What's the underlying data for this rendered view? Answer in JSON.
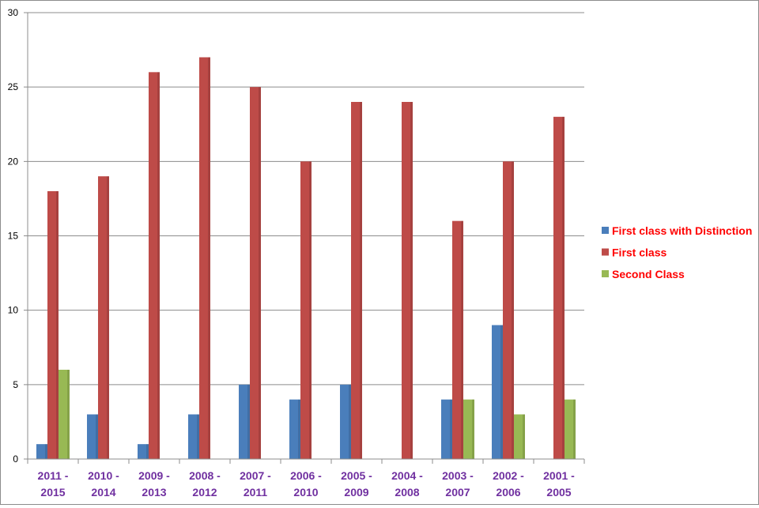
{
  "chart_data": {
    "type": "bar",
    "title": "",
    "xlabel": "",
    "ylabel": "",
    "ylim": [
      0,
      30
    ],
    "yticks": [
      "0",
      "5",
      "10",
      "15",
      "20",
      "25",
      "30"
    ],
    "grid": true,
    "legend_position": "right",
    "categories": [
      [
        "2011 -",
        "2015"
      ],
      [
        "2010 -",
        "2014"
      ],
      [
        "2009 -",
        "2013"
      ],
      [
        "2008 -",
        "2012"
      ],
      [
        "2007 -",
        "2011"
      ],
      [
        "2006 -",
        "2010"
      ],
      [
        "2005 -",
        "2009"
      ],
      [
        "2004 -",
        "2008"
      ],
      [
        "2003 -",
        "2007"
      ],
      [
        "2002 -",
        "2006"
      ],
      [
        "2001 -",
        "2005"
      ]
    ],
    "series": [
      {
        "name": "First class with Distinction",
        "color": "#4a7ebb",
        "values": [
          1,
          3,
          1,
          3,
          5,
          4,
          5,
          0,
          4,
          9,
          0
        ]
      },
      {
        "name": "First class",
        "color": "#be4b48",
        "values": [
          18,
          19,
          26,
          27,
          25,
          20,
          24,
          24,
          16,
          20,
          23
        ]
      },
      {
        "name": "Second Class",
        "color": "#98b954",
        "values": [
          6,
          0,
          0,
          0,
          0,
          0,
          0,
          0,
          4,
          3,
          4
        ]
      }
    ],
    "category_label_color": "#7030a0",
    "legend_text_color": "#ff0000"
  }
}
